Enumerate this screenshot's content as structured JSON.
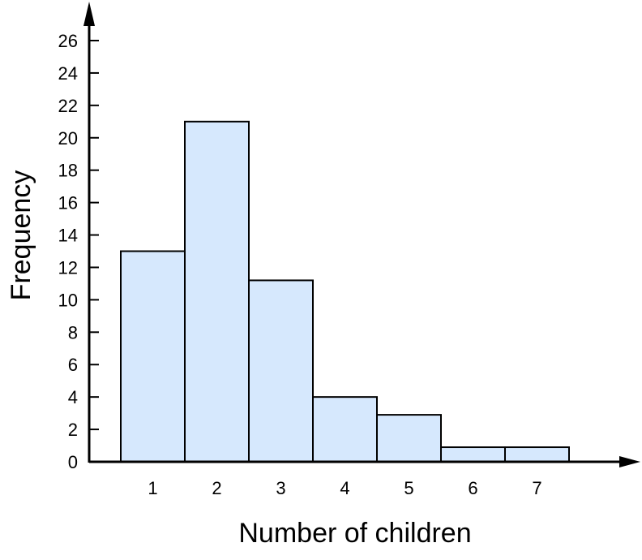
{
  "chart_data": {
    "type": "bar",
    "categories": [
      "1",
      "2",
      "3",
      "4",
      "5",
      "6",
      "7"
    ],
    "values": [
      13,
      21,
      11.2,
      4,
      2.9,
      0.9,
      0.9
    ],
    "title": "",
    "xlabel": "Number of children",
    "ylabel": "Frequency",
    "ylim": [
      0,
      26
    ],
    "yticks": [
      0,
      2,
      4,
      6,
      8,
      10,
      12,
      14,
      16,
      18,
      20,
      22,
      24,
      26
    ],
    "grid": false,
    "bar_color": "#d6e8fd",
    "edge_color": "#000000"
  }
}
